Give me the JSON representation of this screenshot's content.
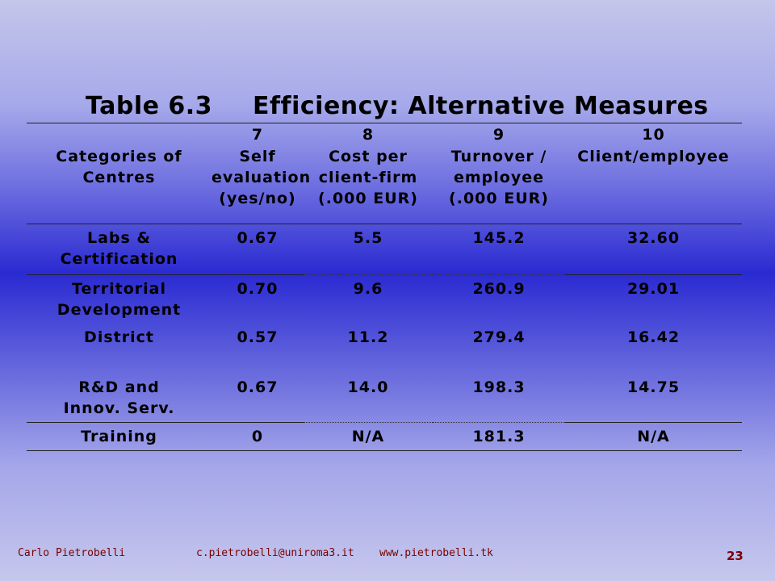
{
  "title": {
    "number": "Table 6.3",
    "text": "Efficiency: Alternative Measures"
  },
  "table": {
    "column_numbers": [
      "",
      "7",
      "8",
      "9",
      "10"
    ],
    "headers": [
      [
        "Categories of",
        "Centres",
        ""
      ],
      [
        "Self",
        "evaluation",
        "(yes/no)"
      ],
      [
        "Cost per",
        "client-firm",
        "(.000 EUR)"
      ],
      [
        "Turnover /",
        "employee",
        "(.000 EUR)"
      ],
      [
        "Client/employee",
        "",
        ""
      ]
    ],
    "rows": [
      {
        "category": [
          "Labs &",
          "Certification"
        ],
        "values": [
          "0.67",
          "5.5",
          "145.2",
          "32.60"
        ]
      },
      {
        "category": [
          "Territorial",
          "Development"
        ],
        "values": [
          "0.70",
          "9.6",
          "260.9",
          "29.01"
        ]
      },
      {
        "category": [
          "District",
          ""
        ],
        "values": [
          "0.57",
          "11.2",
          "279.4",
          "16.42"
        ]
      },
      {
        "category": [
          "R&D and",
          "Innov. Serv."
        ],
        "values": [
          "0.67",
          "14.0",
          "198.3",
          "14.75"
        ]
      },
      {
        "category": [
          "Training",
          ""
        ],
        "values": [
          "0",
          "N/A",
          "181.3",
          "N/A"
        ]
      }
    ]
  },
  "footer": {
    "author": "Carlo Pietrobelli",
    "email": "c.pietrobelli@uniroma3.it",
    "website": "www.pietrobelli.tk",
    "page_number": "23"
  }
}
